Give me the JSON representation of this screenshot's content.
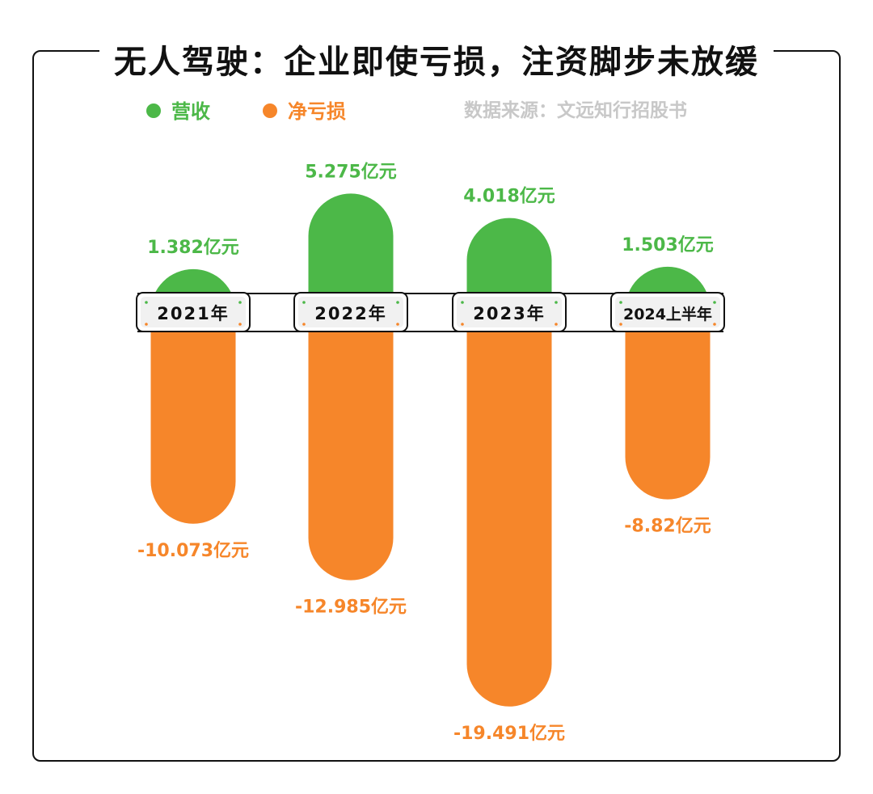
{
  "chart_data": {
    "type": "bar",
    "title": "无人驾驶：企业即使亏损，注资脚步未放缓",
    "source": "数据来源：文远知行招股书",
    "categories": [
      "2021年",
      "2022年",
      "2023年",
      "2024上半年"
    ],
    "series": [
      {
        "name": "营收",
        "color": "#4cb848",
        "values": [
          1.382,
          5.275,
          4.018,
          1.503
        ],
        "labels": [
          "1.382亿元",
          "5.275亿元",
          "4.018亿元",
          "1.503亿元"
        ]
      },
      {
        "name": "净亏损",
        "color": "#f6862a",
        "values": [
          -10.073,
          -12.985,
          -19.491,
          -8.82
        ],
        "labels": [
          "-10.073亿元",
          "-12.985亿元",
          "-19.491亿元",
          "-8.82亿元"
        ]
      }
    ],
    "legend": "top-left",
    "grid": false
  }
}
